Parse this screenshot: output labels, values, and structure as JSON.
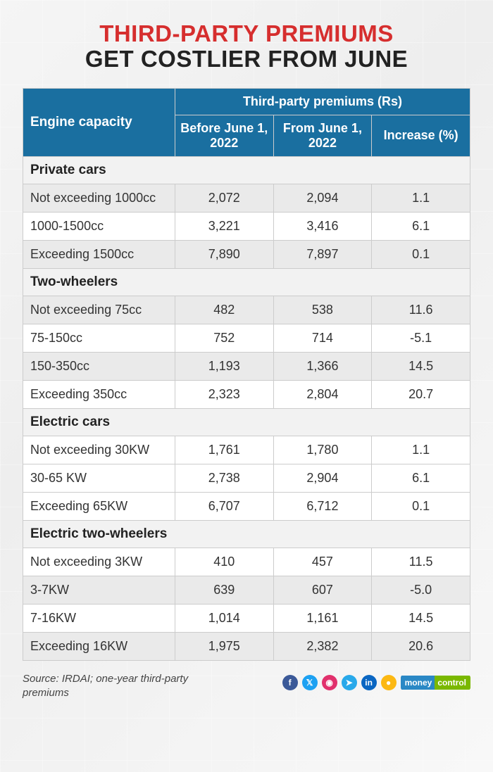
{
  "title": {
    "line1": "THIRD-PARTY PREMIUMS",
    "line2": "GET COSTLIER FROM JUNE",
    "line1_color": "#d62e2e",
    "line2_color": "#222222"
  },
  "table": {
    "header_bg": "#1a6fa0",
    "header_fg": "#ffffff",
    "border_color": "#cccccc",
    "shaded_bg": "#eaeaea",
    "plain_bg": "#ffffff",
    "section_bg": "#f2f2f2",
    "columns": {
      "engine": "Engine capacity",
      "merged": "Third-party premiums (Rs)",
      "before": "Before June 1, 2022",
      "from": "From June 1, 2022",
      "increase": "Increase (%)"
    },
    "sections": [
      {
        "name": "Private cars",
        "rows": [
          {
            "label": "Not exceeding 1000cc",
            "before": "2,072",
            "from": "2,094",
            "inc": "1.1",
            "shaded": true
          },
          {
            "label": "1000-1500cc",
            "before": "3,221",
            "from": "3,416",
            "inc": "6.1",
            "shaded": false
          },
          {
            "label": "Exceeding 1500cc",
            "before": "7,890",
            "from": "7,897",
            "inc": "0.1",
            "shaded": true
          }
        ]
      },
      {
        "name": "Two-wheelers",
        "rows": [
          {
            "label": "Not exceeding 75cc",
            "before": "482",
            "from": "538",
            "inc": "11.6",
            "shaded": true
          },
          {
            "label": "75-150cc",
            "before": "752",
            "from": "714",
            "inc": "-5.1",
            "shaded": false
          },
          {
            "label": "150-350cc",
            "before": "1,193",
            "from": "1,366",
            "inc": "14.5",
            "shaded": true
          },
          {
            "label": "Exceeding 350cc",
            "before": "2,323",
            "from": "2,804",
            "inc": "20.7",
            "shaded": false
          }
        ]
      },
      {
        "name": "Electric cars",
        "rows": [
          {
            "label": "Not exceeding 30KW",
            "before": "1,761",
            "from": "1,780",
            "inc": "1.1",
            "shaded": false
          },
          {
            "label": "30-65 KW",
            "before": "2,738",
            "from": "2,904",
            "inc": "6.1",
            "shaded": false
          },
          {
            "label": "Exceeding 65KW",
            "before": "6,707",
            "from": "6,712",
            "inc": "0.1",
            "shaded": false
          }
        ]
      },
      {
        "name": "Electric two-wheelers",
        "rows": [
          {
            "label": "Not exceeding 3KW",
            "before": "410",
            "from": "457",
            "inc": "11.5",
            "shaded": false
          },
          {
            "label": "3-7KW",
            "before": "639",
            "from": "607",
            "inc": "-5.0",
            "shaded": true
          },
          {
            "label": "7-16KW",
            "before": "1,014",
            "from": "1,161",
            "inc": "14.5",
            "shaded": false
          },
          {
            "label": "Exceeding 16KW",
            "before": "1,975",
            "from": "2,382",
            "inc": "20.6",
            "shaded": true
          }
        ]
      }
    ]
  },
  "footer": {
    "source": "Source: IRDAI; one-year third-party premiums",
    "socials": [
      {
        "name": "facebook",
        "glyph": "f",
        "bg": "#3b5998"
      },
      {
        "name": "twitter",
        "glyph": "𝕏",
        "bg": "#1da1f2"
      },
      {
        "name": "instagram",
        "glyph": "◉",
        "bg": "#e1306c"
      },
      {
        "name": "telegram",
        "glyph": "➤",
        "bg": "#29a9ea"
      },
      {
        "name": "linkedin",
        "glyph": "in",
        "bg": "#0a66c2"
      },
      {
        "name": "other",
        "glyph": "●",
        "bg": "#fcb813"
      }
    ],
    "brand": {
      "part1": "money",
      "part2": "control",
      "bg1": "#2a88c5",
      "bg2": "#7ab800"
    }
  }
}
